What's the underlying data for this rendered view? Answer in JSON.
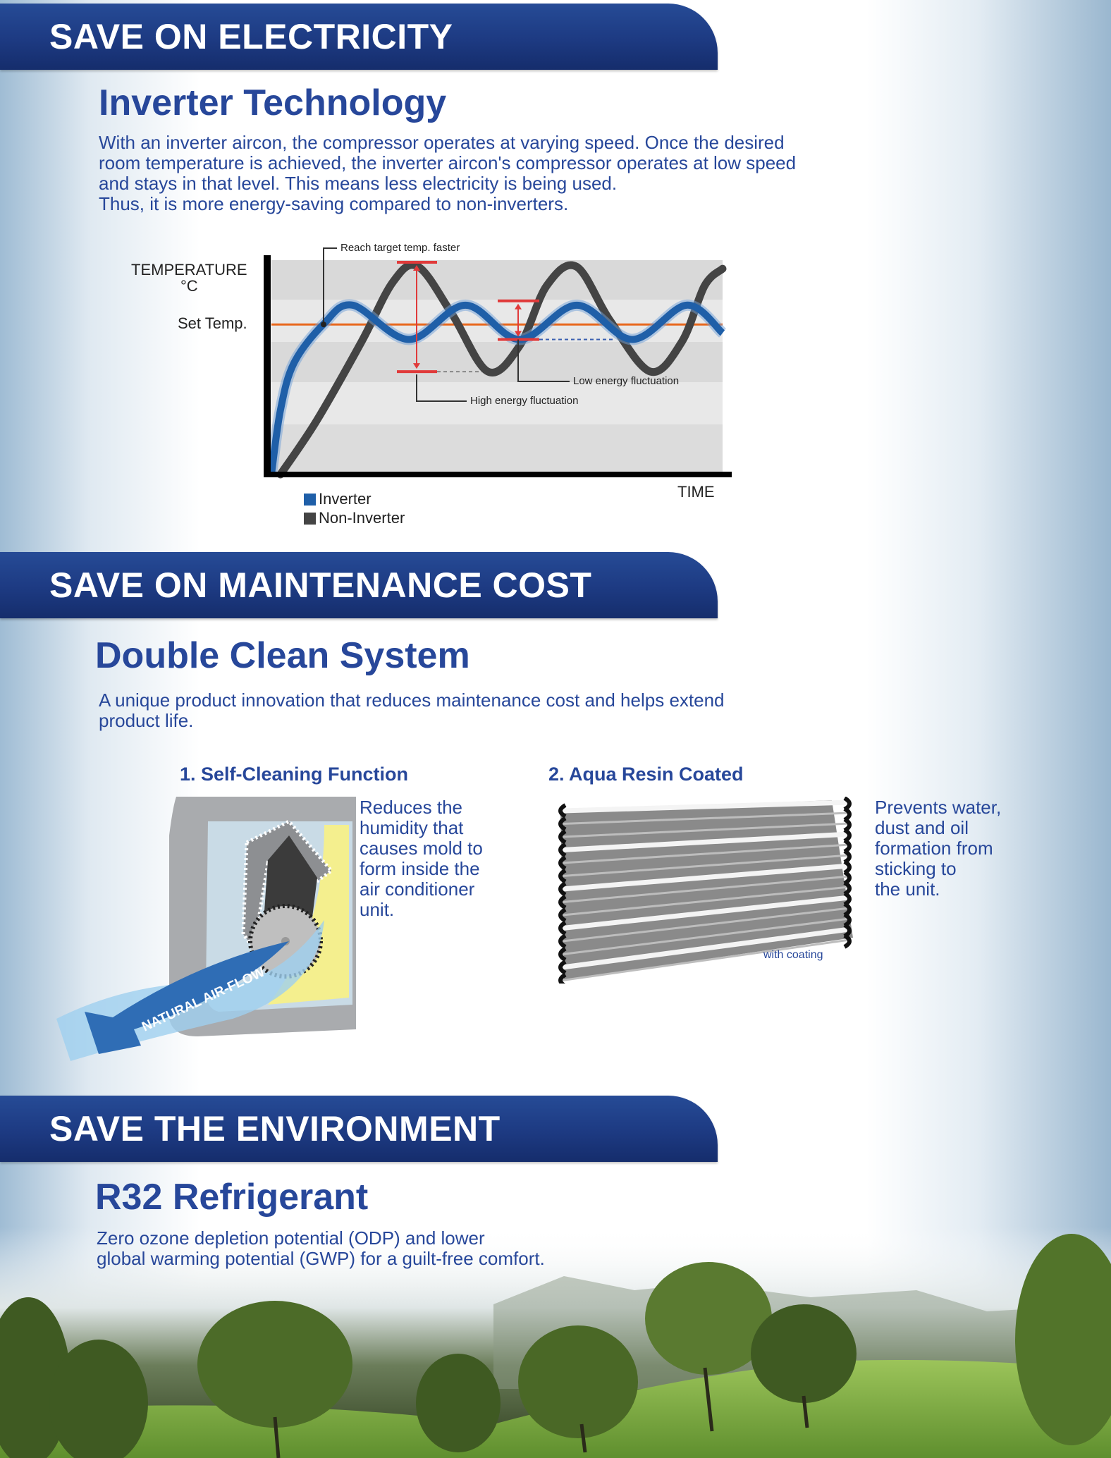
{
  "sections": [
    {
      "banner": "SAVE ON ELECTRICITY",
      "title": "Inverter Technology",
      "body": "With an inverter aircon, the compressor operates at varying speed. Once the desired\nroom temperature is achieved, the inverter aircon's compressor operates at low speed\nand stays in that level. This means less electricity is being used.\nThus, it is more energy-saving compared to non-inverters."
    },
    {
      "banner": "SAVE ON MAINTENANCE COST",
      "title": "Double Clean System",
      "body": "A unique product innovation that reduces maintenance cost and helps extend\nproduct life.",
      "features": [
        {
          "title": "1. Self-Cleaning Function",
          "text": "Reduces the\nhumidity that\ncauses mold to\nform inside the\nair conditioner\nunit.",
          "image_label": "NATURAL AIR-FLOW"
        },
        {
          "title": "2. Aqua Resin Coated",
          "text": "Prevents water,\ndust and oil\nformation from\nsticking to\nthe unit.",
          "image_label": "with coating"
        }
      ]
    },
    {
      "banner": "SAVE THE ENVIRONMENT",
      "title": "R32 Refrigerant",
      "body": "Zero ozone depletion potential (ODP) and lower\nglobal warming potential (GWP) for a guilt-free comfort."
    }
  ],
  "chart_data": {
    "type": "line",
    "ylabel": "TEMPERATURE",
    "yunit": "°C",
    "xlabel": "TIME",
    "set_temp_label": "Set Temp.",
    "set_temp": 70,
    "xlim": [
      0,
      100
    ],
    "ylim": [
      0,
      100
    ],
    "grid": false,
    "legend_position": "bottom-left",
    "series": [
      {
        "name": "Inverter",
        "color": "#1f5fa8",
        "x": [
          0,
          2,
          5,
          11.5,
          18,
          30.5,
          43,
          55,
          67.7,
          80,
          92,
          100
        ],
        "y": [
          0,
          30,
          52,
          70,
          79,
          63,
          79,
          63,
          79,
          63,
          79,
          66
        ]
      },
      {
        "name": "Non-Inverter",
        "color": "#444444",
        "x": [
          2,
          10,
          20,
          27,
          32.5,
          40,
          48,
          55,
          61,
          67.6,
          75,
          84,
          91,
          96,
          100
        ],
        "y": [
          0,
          25,
          62,
          90,
          97,
          75,
          48,
          60,
          88,
          97,
          72,
          48,
          62,
          88,
          96
        ]
      }
    ],
    "annotations": [
      {
        "text": "Reach target temp. faster"
      },
      {
        "text": "Low energy fluctuation",
        "range": [
          63,
          81
        ]
      },
      {
        "text": "High energy fluctuation",
        "range": [
          48,
          99
        ]
      }
    ],
    "set_temp_color": "#e8671c",
    "marker_color": "#e03a3a"
  }
}
